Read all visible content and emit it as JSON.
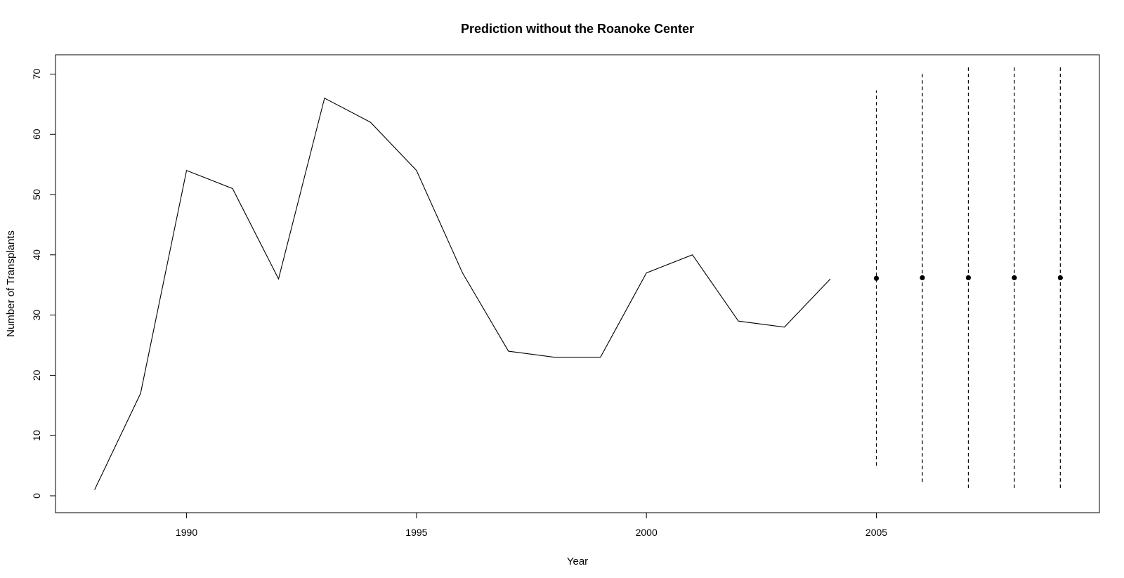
{
  "chart_data": {
    "type": "line",
    "title": "Prediction without the Roanoke Center",
    "xlabel": "Year",
    "ylabel": "Number of Transplants",
    "xlim": [
      1987.15,
      2009.85
    ],
    "ylim": [
      -2.8,
      73.2
    ],
    "x_ticks": [
      1990,
      1995,
      2000,
      2005
    ],
    "y_ticks": [
      0,
      10,
      20,
      30,
      40,
      50,
      60,
      70
    ],
    "grid": false,
    "series": [
      {
        "style": "solid line",
        "x": [
          1988,
          1989,
          1990,
          1991,
          1992,
          1993,
          1994,
          1995,
          1996,
          1997,
          1998,
          1999,
          2000,
          2001,
          2002,
          2003,
          2004
        ],
        "values": [
          1,
          17,
          54,
          51,
          36,
          66,
          62,
          54,
          37,
          24,
          23,
          23,
          37,
          40,
          29,
          28,
          36
        ]
      }
    ],
    "predictions": [
      {
        "x": 2005,
        "value": 36.1,
        "lower": 5.0,
        "upper": 67.3
      },
      {
        "x": 2006,
        "value": 36.2,
        "lower": 2.3,
        "upper": 70.2
      },
      {
        "x": 2007,
        "value": 36.2,
        "lower": 1.3,
        "upper": 71.2
      },
      {
        "x": 2008,
        "value": 36.2,
        "lower": 1.3,
        "upper": 71.2
      },
      {
        "x": 2009,
        "value": 36.2,
        "lower": 1.3,
        "upper": 71.2
      }
    ],
    "colors": {
      "line": "#000000",
      "interval": "#000000",
      "point": "#000000",
      "background": "#ffffff"
    }
  }
}
